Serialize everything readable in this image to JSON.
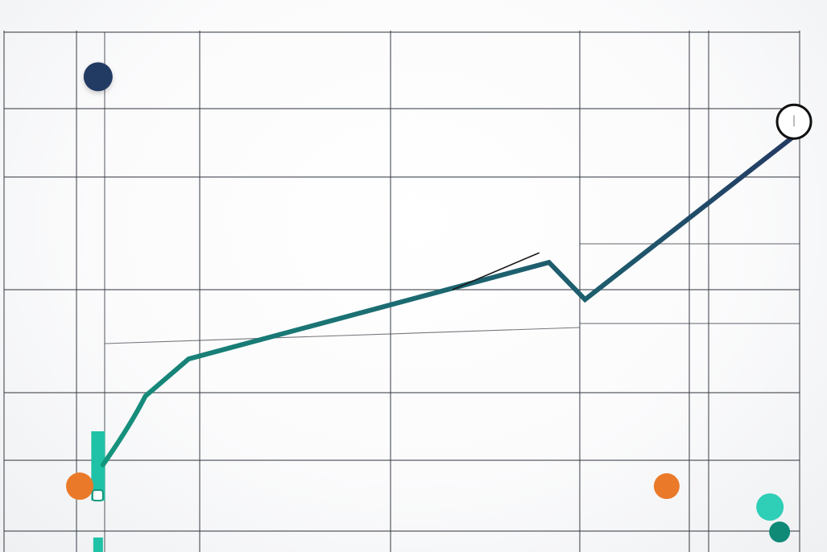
{
  "chart_data": {
    "type": "line",
    "title": "",
    "xlabel": "",
    "ylabel": "",
    "grid": true,
    "legend": "none",
    "xlim": [
      0,
      10
    ],
    "ylim": [
      0,
      7
    ],
    "colors": {
      "primary_line": "#243a63",
      "curve_start": "#14967e",
      "vertical_bar_base": "#1fc2a6",
      "orange_bar": "#ea7a2a",
      "teal_bar": "#2ecfb6",
      "teal_dot": "#0e8a77",
      "grid": "#3a3f47"
    },
    "series": [
      {
        "type": "line",
        "points": [
          [
            0.3,
            1.0
          ],
          [
            0.9,
            2.1
          ],
          [
            1.5,
            2.6
          ],
          [
            6.5,
            3.9
          ],
          [
            7.0,
            3.4
          ],
          [
            9.9,
            5.6
          ]
        ],
        "end_marker": "open-circle"
      },
      {
        "type": "vertical-bar",
        "x": 0.3,
        "from": 0.8,
        "to": 6.4
      },
      {
        "type": "horizontal-bar",
        "y": 0.8,
        "from": 0.0,
        "to": 8.2
      },
      {
        "type": "horizontal-bar",
        "y": 0.4,
        "from": 0.3,
        "to": 9.7
      }
    ]
  }
}
